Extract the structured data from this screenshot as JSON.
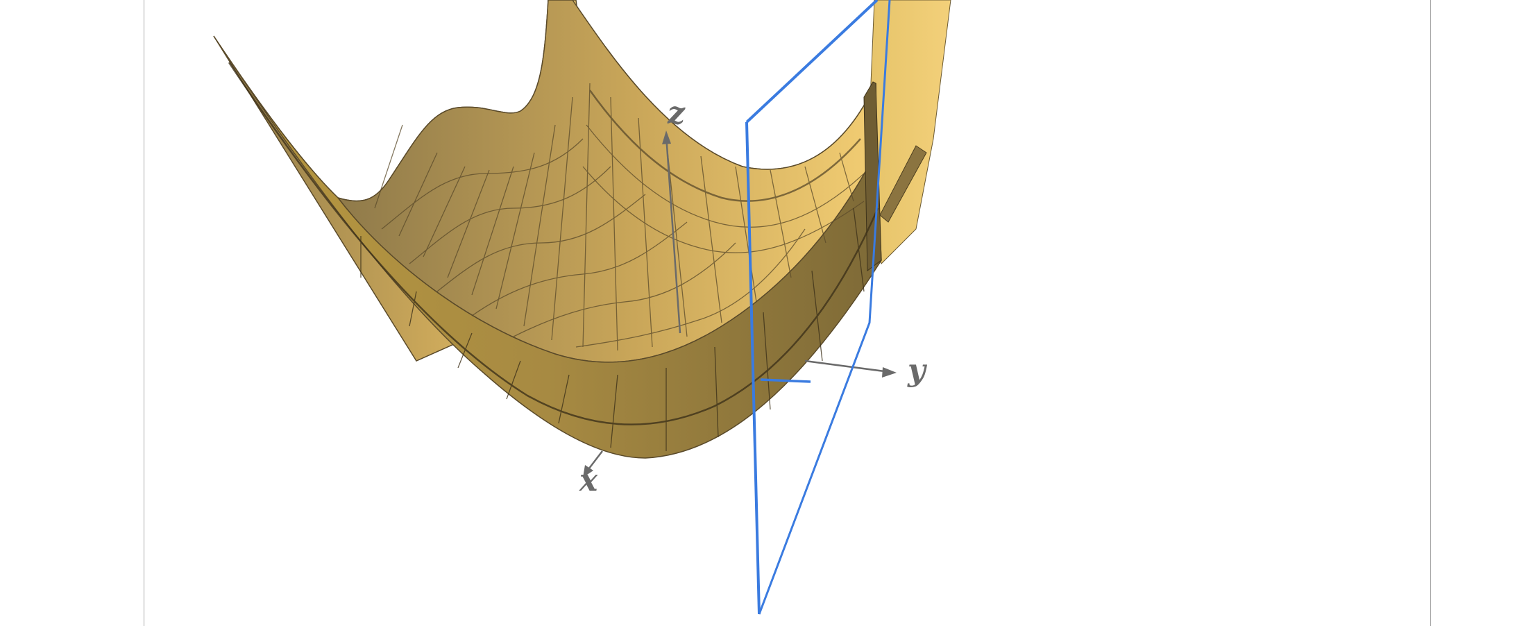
{
  "scene": {
    "axes": {
      "x_label": "x",
      "y_label": "y",
      "z_label": "z"
    },
    "colors": {
      "surface_light": "#f2cd73",
      "surface_mid": "#c9a659",
      "surface_dark": "#8f7a4a",
      "mesh_line": "#5a4a2a",
      "plane_stroke": "#3a7be0",
      "axis_color": "#6a6a6a",
      "frame_border": "#a8a8a8"
    }
  }
}
